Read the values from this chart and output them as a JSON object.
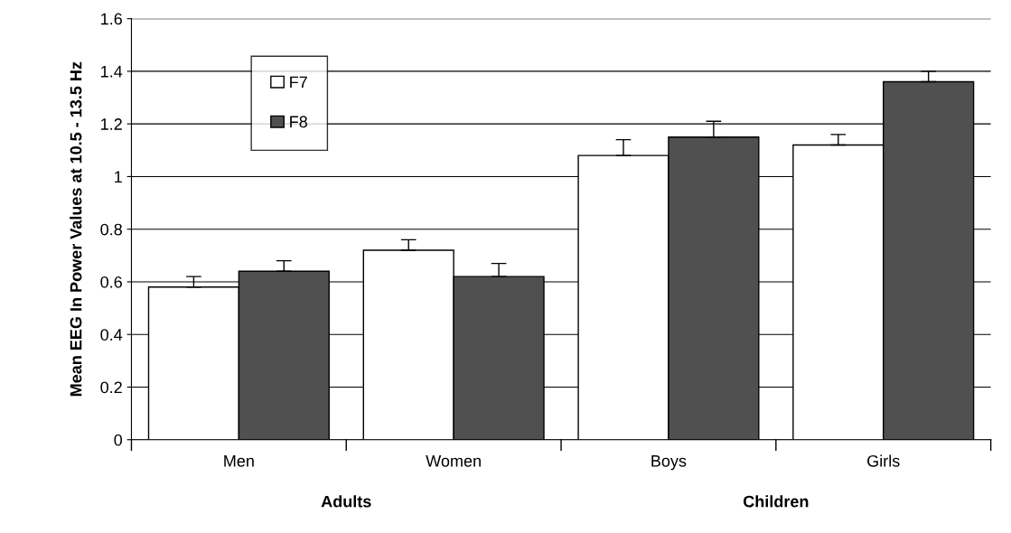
{
  "chart_data": {
    "type": "bar",
    "ylabel": "Mean EEG In Power Values at 10.5 - 13.5 Hz",
    "categories": [
      "Men",
      "Women",
      "Boys",
      "Girls"
    ],
    "series": [
      {
        "name": "F7",
        "color": "#ffffff",
        "values": [
          0.58,
          0.72,
          1.08,
          1.12
        ],
        "errors": [
          [
            0.58,
            0.62
          ],
          [
            0.72,
            0.76
          ],
          [
            1.08,
            1.14
          ],
          [
            1.12,
            1.16
          ]
        ]
      },
      {
        "name": "F8",
        "color": "#505050",
        "values": [
          0.64,
          0.62,
          1.15,
          1.36
        ],
        "errors": [
          [
            0.64,
            0.68
          ],
          [
            0.62,
            0.67
          ],
          [
            1.15,
            1.21
          ],
          [
            1.36,
            1.4
          ]
        ]
      }
    ],
    "ylim": [
      0,
      1.6
    ],
    "yticks": [
      0,
      {
        "value": 0.2,
        "label": "0.2"
      },
      {
        "value": 0.4,
        "label": "0.4"
      },
      {
        "value": 0.6,
        "label": "0.6"
      },
      {
        "value": 0.8,
        "label": "0.8"
      },
      1,
      {
        "value": 1.2,
        "label": "1.2"
      },
      {
        "value": 1.4,
        "label": "1.4"
      },
      {
        "value": 1.6,
        "label": "1.6"
      }
    ],
    "grid": "y",
    "legend": "top left",
    "annotations": [
      "Adults",
      "Children"
    ]
  }
}
